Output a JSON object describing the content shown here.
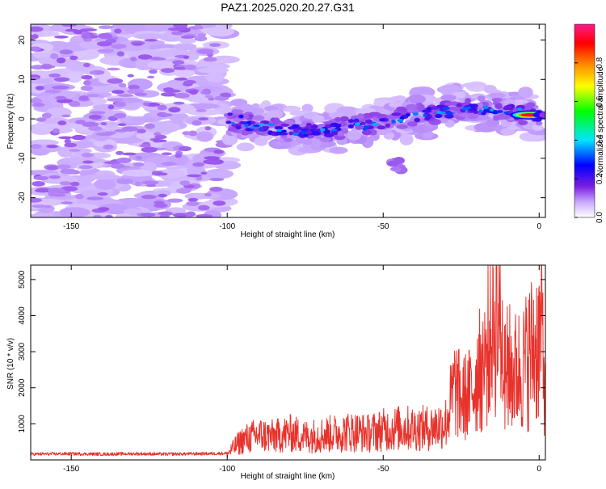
{
  "page_title": "PAZ1.2025.020.20.27.G31",
  "chart_data": [
    {
      "type": "heatmap",
      "title": "PAZ1.2025.020.20.27.G31",
      "xlabel": "Height of straight line (km)",
      "ylabel": "Frequency (Hz)",
      "xlim": [
        -163,
        2
      ],
      "ylim": [
        -25,
        24
      ],
      "xticks": [
        -150,
        -100,
        -50,
        0
      ],
      "yticks": [
        -20,
        -10,
        0,
        10,
        20
      ],
      "colorbar": {
        "label": "Normalized spectral amplitude",
        "range": [
          0,
          1
        ],
        "ticks": [
          "0.0",
          "0.2",
          "0.4",
          "0.6",
          "0.8"
        ],
        "tick_values": [
          0.0,
          0.2,
          0.4,
          0.6,
          0.8
        ],
        "colors": [
          "#ffffff",
          "#c8a8ff",
          "#7a1fe0",
          "#0000ff",
          "#00e5ff",
          "#00ff00",
          "#ffff00",
          "#ff8000",
          "#ff0000",
          "#ff0080"
        ]
      },
      "ridge": {
        "x": [
          -100,
          -90,
          -80,
          -70,
          -60,
          -50,
          -40,
          -30,
          -20,
          -10,
          0
        ],
        "frequency": [
          0,
          -2,
          -3,
          -3,
          -2,
          -1,
          1,
          2,
          3,
          2,
          1
        ]
      },
      "peak": {
        "x": -3,
        "frequency": 1,
        "amplitude": 0.95
      },
      "grid": false
    },
    {
      "type": "line",
      "xlabel": "Height of straight line (km)",
      "ylabel": "SNR (10 * v/v)",
      "xlim": [
        -163,
        2
      ],
      "ylim": [
        0,
        5400
      ],
      "xticks": [
        -150,
        -100,
        -50,
        0
      ],
      "yticks": [
        1000,
        2000,
        3000,
        4000,
        5000
      ],
      "series": [
        {
          "color": "#e8322c",
          "x": [
            -163,
            -150,
            -140,
            -130,
            -120,
            -110,
            -100,
            -97,
            -95,
            -90,
            -85,
            -80,
            -75,
            -70,
            -65,
            -60,
            -55,
            -50,
            -45,
            -40,
            -35,
            -30,
            -27,
            -25,
            -22,
            -20,
            -17,
            -15,
            -13,
            -12,
            -10,
            -8,
            -5,
            -3,
            -1,
            0,
            1,
            2
          ],
          "values": [
            160,
            170,
            160,
            170,
            160,
            170,
            180,
            450,
            600,
            750,
            700,
            800,
            700,
            750,
            800,
            850,
            800,
            900,
            950,
            950,
            950,
            1100,
            2200,
            1800,
            2000,
            2500,
            3000,
            4000,
            4500,
            3500,
            2800,
            2600,
            2800,
            3200,
            3500,
            3600,
            3900,
            1800
          ]
        }
      ],
      "grid": false
    }
  ]
}
